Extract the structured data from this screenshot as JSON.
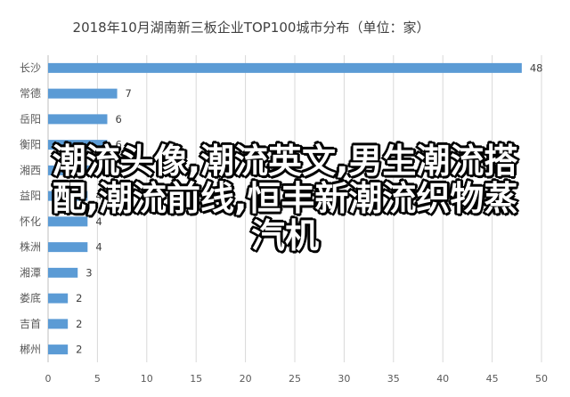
{
  "chart_data": {
    "type": "bar",
    "orientation": "horizontal",
    "title": "2018年10月湖南新三板企业TOP100城市分布（单位：家）",
    "categories": [
      "长沙",
      "常德",
      "岳阳",
      "衡阳",
      "湘西",
      "益阳",
      "怀化",
      "株洲",
      "湘潭",
      "娄底",
      "吉首",
      "郴州"
    ],
    "values": [
      48,
      7,
      6,
      6,
      5,
      4,
      4,
      4,
      3,
      2,
      2,
      2
    ],
    "data_labels": [
      "48",
      "7",
      "6",
      "6",
      "5",
      "4",
      "4",
      "4",
      "3",
      "2",
      "2",
      "2"
    ],
    "xlim": [
      0,
      50
    ],
    "xticks": [
      "0",
      "5",
      "10",
      "15",
      "20",
      "25",
      "30",
      "35",
      "40",
      "45",
      "50"
    ],
    "grid": true,
    "bar_color": "#5b9bd5"
  },
  "overlay_text": {
    "line1": "潮流头像,潮流英文,男生潮流搭",
    "line2": "配,潮流前线,恒丰新潮流织物蒸",
    "line3": "汽机"
  }
}
